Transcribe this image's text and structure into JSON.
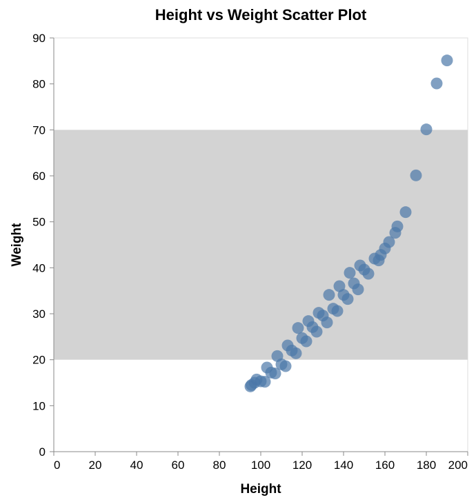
{
  "chart_data": {
    "type": "scatter",
    "title": "Height vs Weight Scatter Plot",
    "xlabel": "Height",
    "ylabel": "Weight",
    "xlim": [
      0,
      200
    ],
    "ylim": [
      0,
      90
    ],
    "x_ticks": [
      0,
      20,
      40,
      60,
      80,
      100,
      120,
      140,
      160,
      180,
      200
    ],
    "y_ticks": [
      0,
      10,
      20,
      30,
      40,
      50,
      60,
      70,
      80,
      90
    ],
    "grid": false,
    "highlight_band": {
      "y_from": 20,
      "y_to": 70,
      "color": "#d3d3d3"
    },
    "point_color": "#4c78a8",
    "points": [
      {
        "x": 95,
        "y": 14.2
      },
      {
        "x": 95.5,
        "y": 14.5
      },
      {
        "x": 97,
        "y": 15.0
      },
      {
        "x": 98,
        "y": 15.7
      },
      {
        "x": 100,
        "y": 15.3
      },
      {
        "x": 102,
        "y": 15.2
      },
      {
        "x": 103,
        "y": 18.3
      },
      {
        "x": 105,
        "y": 17.2
      },
      {
        "x": 107,
        "y": 17.0
      },
      {
        "x": 108,
        "y": 20.8
      },
      {
        "x": 110,
        "y": 19.0
      },
      {
        "x": 112,
        "y": 18.6
      },
      {
        "x": 113,
        "y": 23.1
      },
      {
        "x": 115,
        "y": 22.0
      },
      {
        "x": 117,
        "y": 21.4
      },
      {
        "x": 118,
        "y": 26.9
      },
      {
        "x": 120,
        "y": 24.7
      },
      {
        "x": 122,
        "y": 24.0
      },
      {
        "x": 123,
        "y": 28.4
      },
      {
        "x": 125,
        "y": 27.1
      },
      {
        "x": 127,
        "y": 26.1
      },
      {
        "x": 128,
        "y": 30.2
      },
      {
        "x": 130,
        "y": 29.6
      },
      {
        "x": 132,
        "y": 28.1
      },
      {
        "x": 133,
        "y": 34.1
      },
      {
        "x": 135,
        "y": 31.1
      },
      {
        "x": 137,
        "y": 30.6
      },
      {
        "x": 138,
        "y": 36.0
      },
      {
        "x": 140,
        "y": 34.1
      },
      {
        "x": 142,
        "y": 33.2
      },
      {
        "x": 143,
        "y": 38.9
      },
      {
        "x": 145,
        "y": 36.6
      },
      {
        "x": 147,
        "y": 35.3
      },
      {
        "x": 148,
        "y": 40.5
      },
      {
        "x": 150,
        "y": 39.6
      },
      {
        "x": 152,
        "y": 38.7
      },
      {
        "x": 155,
        "y": 42.0
      },
      {
        "x": 157,
        "y": 41.6
      },
      {
        "x": 158,
        "y": 42.8
      },
      {
        "x": 160,
        "y": 44.2
      },
      {
        "x": 162,
        "y": 45.6
      },
      {
        "x": 165,
        "y": 47.6
      },
      {
        "x": 166,
        "y": 49.0
      },
      {
        "x": 170,
        "y": 52.1
      },
      {
        "x": 175,
        "y": 60.1
      },
      {
        "x": 180,
        "y": 70.1
      },
      {
        "x": 185,
        "y": 80.1
      },
      {
        "x": 190,
        "y": 85.1
      }
    ]
  }
}
